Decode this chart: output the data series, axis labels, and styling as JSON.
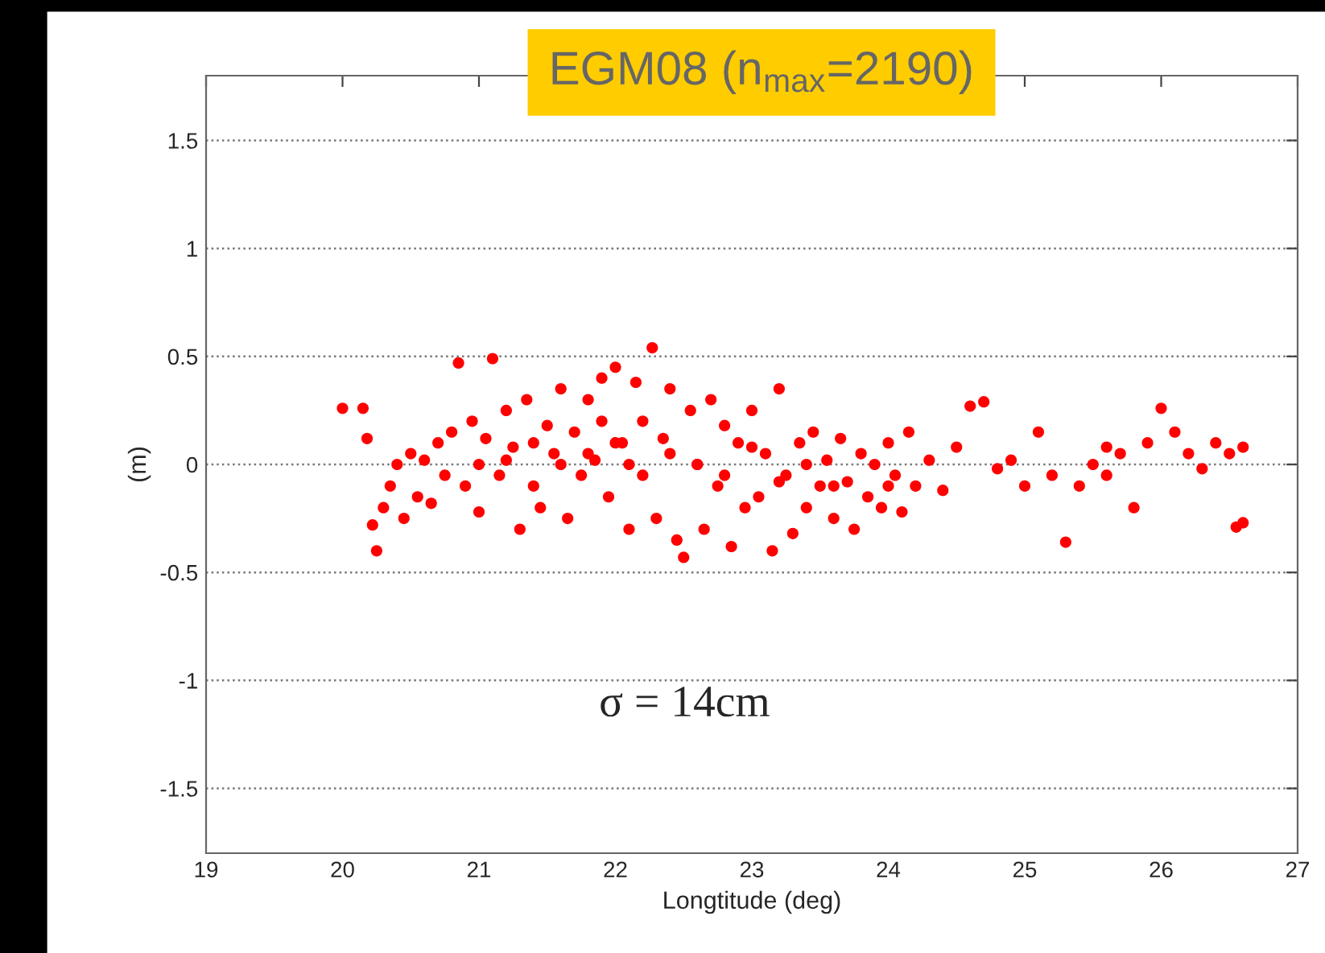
{
  "chart_data": {
    "type": "scatter",
    "title": "EGM08 (n$_{max}$=2190)",
    "xlabel": "Longtitude (deg)",
    "ylabel": "(m)",
    "annotations": [
      "σ = 14cm"
    ],
    "xlim": [
      19,
      27
    ],
    "xticks": [
      19,
      20,
      21,
      22,
      23,
      24,
      25,
      26,
      27
    ],
    "ylim": [
      -1.8,
      1.8
    ],
    "yticks": [
      -1.5,
      -1,
      -0.5,
      0,
      0.5,
      1,
      1.5
    ],
    "grid": "y",
    "marker": "circle",
    "series": [
      {
        "color": "#ff0000",
        "x": [
          20.0,
          20.15,
          20.18,
          20.25,
          20.22,
          20.3,
          20.35,
          20.4,
          20.45,
          20.5,
          20.55,
          20.6,
          20.65,
          20.7,
          20.75,
          20.8,
          20.85,
          20.9,
          20.95,
          21.0,
          21.05,
          21.1,
          21.15,
          21.2,
          21.25,
          21.3,
          21.35,
          21.4,
          21.45,
          21.5,
          21.55,
          21.6,
          21.65,
          21.7,
          21.75,
          21.8,
          21.85,
          21.9,
          21.95,
          22.0,
          22.05,
          22.1,
          22.15,
          22.2,
          22.27,
          22.3,
          22.35,
          22.4,
          22.45,
          22.5,
          22.55,
          22.6,
          22.65,
          22.7,
          22.75,
          22.8,
          22.85,
          22.9,
          22.95,
          23.0,
          23.05,
          23.1,
          23.15,
          23.2,
          23.25,
          23.3,
          23.35,
          23.4,
          23.45,
          23.5,
          23.55,
          23.6,
          23.65,
          23.7,
          23.75,
          23.8,
          23.85,
          23.9,
          23.95,
          24.0,
          24.05,
          24.1,
          24.15,
          24.2,
          24.3,
          24.4,
          24.5,
          24.6,
          24.7,
          24.8,
          24.9,
          25.0,
          25.1,
          25.2,
          25.3,
          25.4,
          25.5,
          25.6,
          25.7,
          25.8,
          25.9,
          26.0,
          26.1,
          26.2,
          26.3,
          26.4,
          26.5,
          26.55,
          26.6,
          26.6,
          21.0,
          21.4,
          21.8,
          22.2,
          22.6,
          23.0,
          23.4,
          21.2,
          21.6,
          22.0,
          22.4,
          22.8,
          23.2,
          23.6,
          24.0,
          25.6,
          21.9,
          22.1
        ],
        "values": [
          0.26,
          0.26,
          0.12,
          -0.4,
          -0.28,
          -0.2,
          -0.1,
          0.0,
          -0.25,
          0.05,
          -0.15,
          0.02,
          -0.18,
          0.1,
          -0.05,
          0.15,
          0.47,
          -0.1,
          0.2,
          -0.22,
          0.12,
          0.49,
          -0.05,
          0.25,
          0.08,
          -0.3,
          0.3,
          0.1,
          -0.2,
          0.18,
          0.05,
          0.35,
          -0.25,
          0.15,
          -0.05,
          0.3,
          0.02,
          0.4,
          -0.15,
          0.45,
          0.1,
          -0.3,
          0.38,
          0.2,
          0.54,
          -0.25,
          0.12,
          0.35,
          -0.35,
          -0.43,
          0.25,
          0.0,
          -0.3,
          0.3,
          -0.1,
          0.18,
          -0.38,
          0.1,
          -0.2,
          0.25,
          -0.15,
          0.05,
          -0.4,
          0.35,
          -0.05,
          -0.32,
          0.1,
          -0.2,
          0.15,
          -0.1,
          0.02,
          -0.25,
          0.12,
          -0.08,
          -0.3,
          0.05,
          -0.15,
          0.0,
          -0.2,
          0.1,
          -0.05,
          -0.22,
          0.15,
          -0.1,
          0.02,
          -0.12,
          0.08,
          0.27,
          0.29,
          -0.02,
          0.02,
          -0.1,
          0.15,
          -0.05,
          -0.36,
          -0.1,
          0.0,
          -0.05,
          0.05,
          -0.2,
          0.1,
          0.26,
          0.15,
          0.05,
          -0.02,
          0.1,
          0.05,
          -0.29,
          -0.27,
          0.08,
          0.0,
          -0.1,
          0.05,
          -0.05,
          0.0,
          0.08,
          0.0,
          0.02,
          0.0,
          0.1,
          0.05,
          -0.05,
          -0.08,
          -0.1,
          -0.1,
          0.08,
          0.2,
          0.0
        ]
      }
    ]
  }
}
